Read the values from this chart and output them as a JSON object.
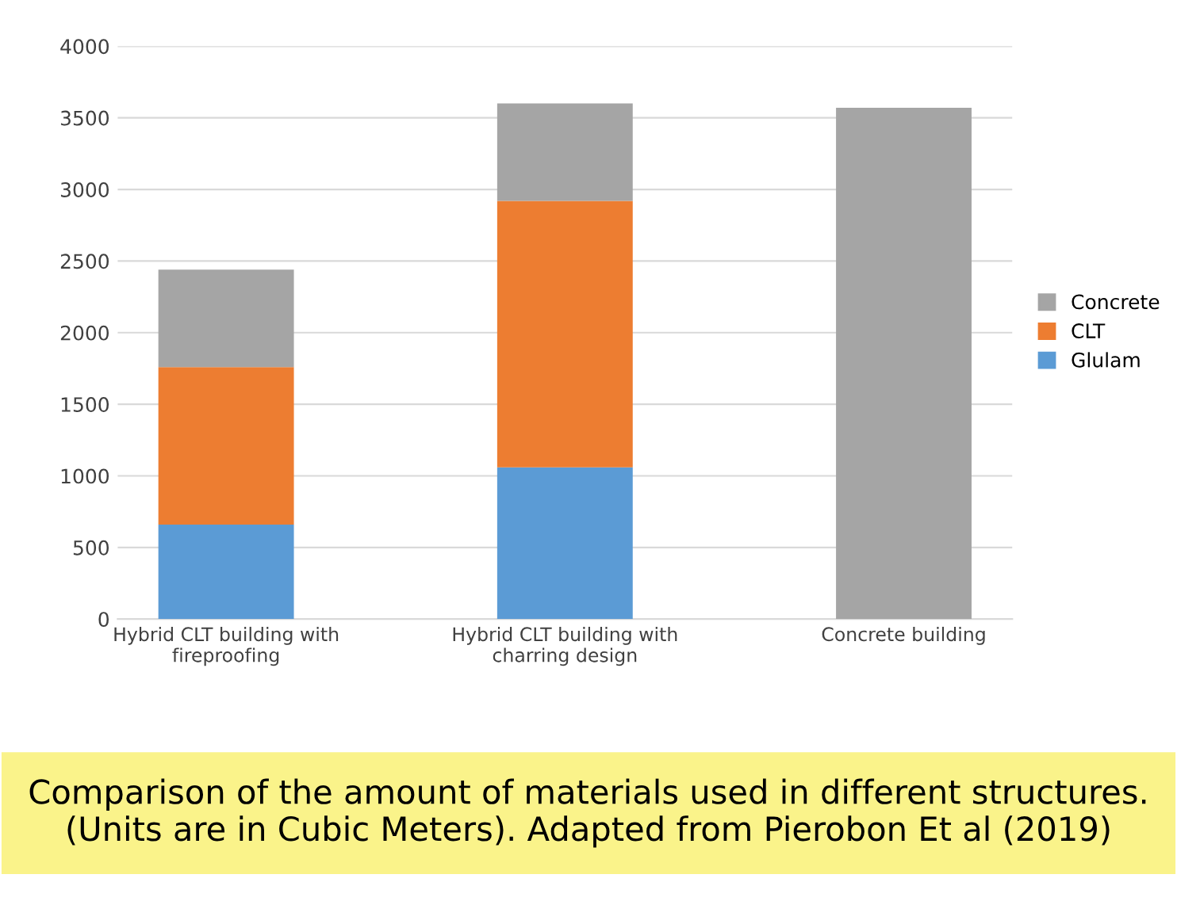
{
  "chart_data": {
    "type": "bar",
    "stacked": true,
    "categories": [
      "Hybrid CLT building with fireproofing",
      "Hybrid CLT building with charring design",
      "Concrete building"
    ],
    "series": [
      {
        "name": "Glulam",
        "color": "#5b9bd5",
        "values": [
          660,
          1060,
          0
        ]
      },
      {
        "name": "CLT",
        "color": "#ed7d31",
        "values": [
          1100,
          1860,
          0
        ]
      },
      {
        "name": "Concrete",
        "color": "#a5a5a5",
        "values": [
          680,
          680,
          3570
        ]
      }
    ],
    "ylim": [
      0,
      4000
    ],
    "yticks": [
      0,
      500,
      1000,
      1500,
      2000,
      2500,
      3000,
      3500,
      4000
    ],
    "grid": "y",
    "legend": "right",
    "annotations": [
      "Comparison of the amount of materials used in different structures. (Units are in Cubic Meters). Adapted from Pierobon Et al (2019)"
    ]
  }
}
